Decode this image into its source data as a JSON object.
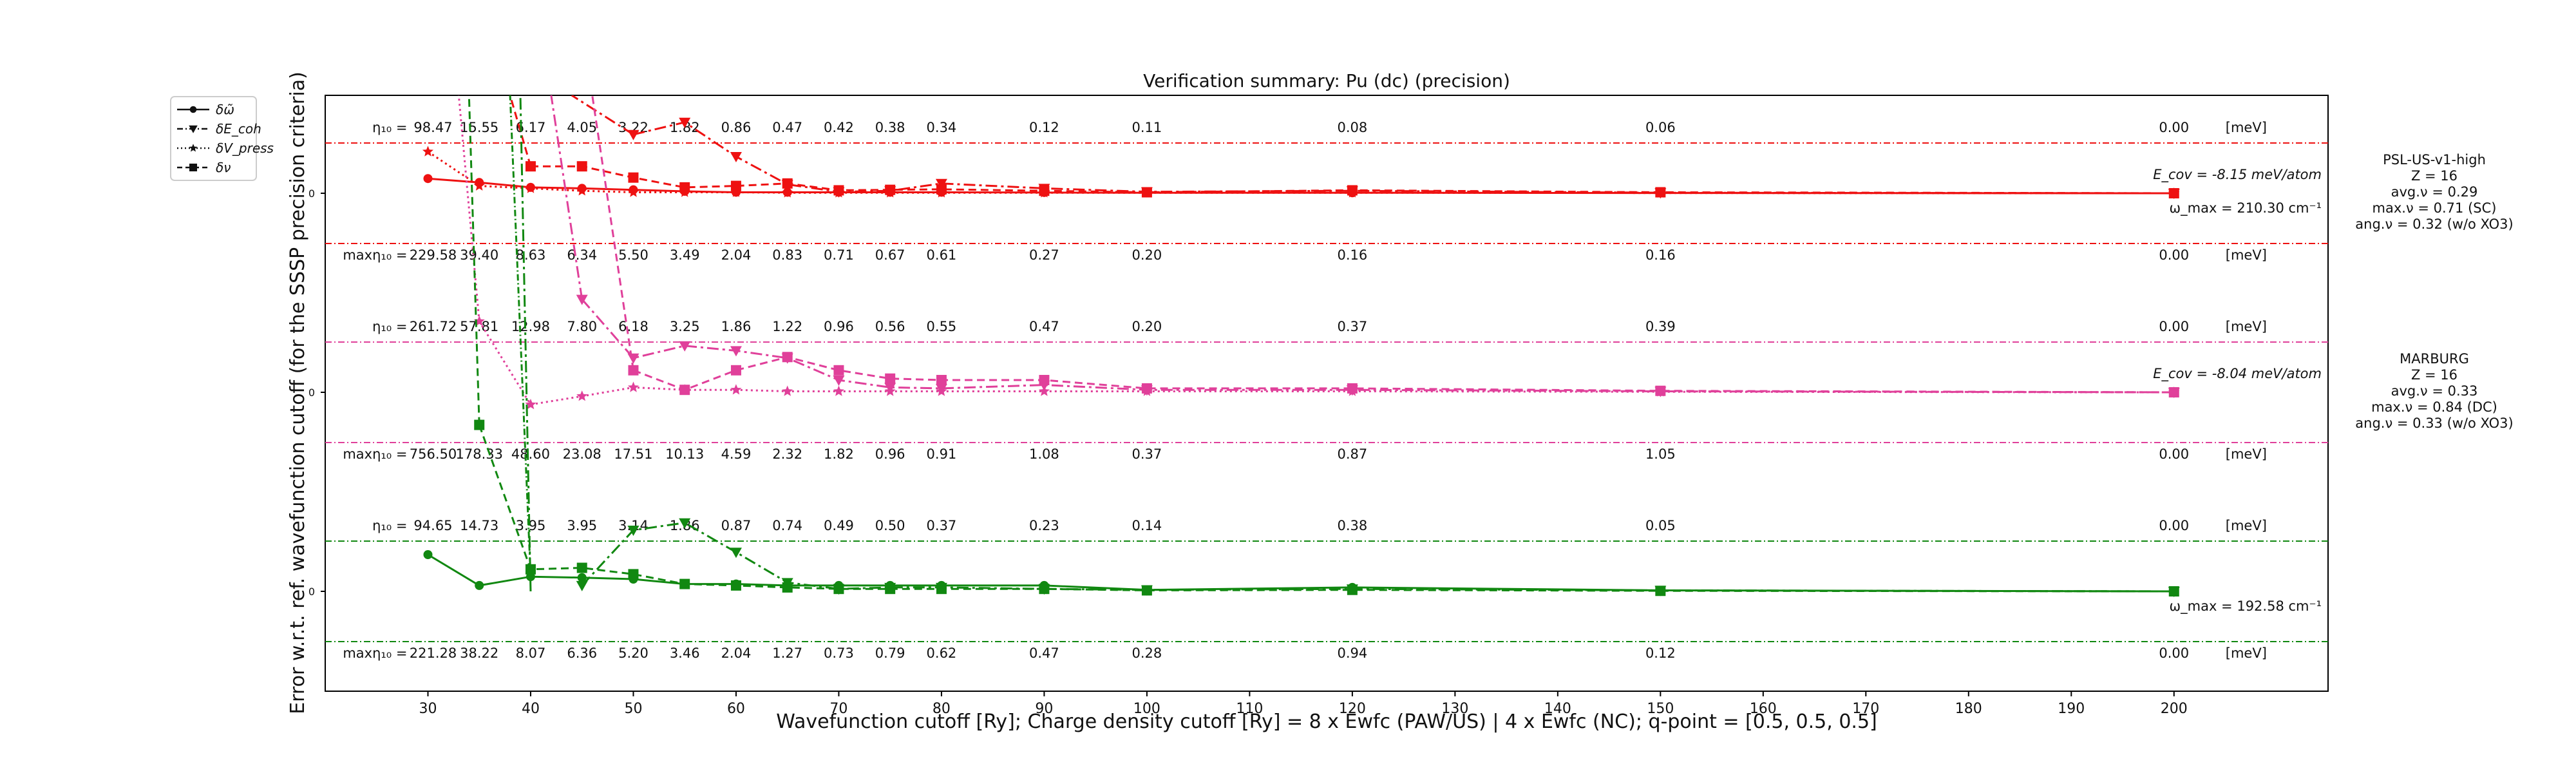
{
  "chart_data": {
    "type": "line",
    "title": "Verification summary: Pu (dc) (precision)",
    "xlabel": "Wavefunction cutoff [Ry]; Charge density cutoff [Ry] = 8 x Ewfc (PAW/US) | 4 x Ewfc (NC); q-point = [0.5, 0.5, 0.5]",
    "ylabel": "Error w.r.t. ref. wavefunction cutoff (for the SSSP precision criteria)",
    "xlim": [
      20,
      215
    ],
    "xticks": [
      30,
      40,
      50,
      60,
      70,
      80,
      90,
      100,
      110,
      120,
      130,
      140,
      150,
      160,
      170,
      180,
      190,
      200
    ],
    "x": [
      30,
      35,
      40,
      45,
      50,
      55,
      60,
      65,
      70,
      75,
      80,
      90,
      100,
      120,
      150,
      200
    ],
    "grid": false,
    "legend_position": "outside-top-left",
    "legend": [
      {
        "label": "δω̃",
        "marker": "circle",
        "linestyle": "solid"
      },
      {
        "label": "δE_coh",
        "marker": "triangle-down",
        "linestyle": "dashdot"
      },
      {
        "label": "δV_press",
        "marker": "star",
        "linestyle": "dotted"
      },
      {
        "label": "δν",
        "marker": "square",
        "linestyle": "dashed"
      }
    ],
    "eta_label": "η₁₀ =",
    "maxeta_label": "maxη₁₀ =",
    "unit_label": "[meV]",
    "zero_tick": "0",
    "panels": [
      {
        "color": "#ee1111",
        "info": [
          "PSL-US-v1-high",
          "Z = 16",
          "avg.ν = 0.29",
          "max.ν = 0.71 (SC)",
          "ang.ν = 0.32 (w/o XO3)"
        ],
        "ecov": "E_cov = -8.15 meV/atom",
        "omega_max": "ω_max = 210.30 cm⁻¹",
        "eta": [
          "98.47",
          "15.55",
          "6.17",
          "4.05",
          "3.22",
          "1.82",
          "0.86",
          "0.47",
          "0.42",
          "0.38",
          "0.34",
          "0.12",
          "0.11",
          "0.08",
          "0.06",
          "0.00"
        ],
        "maxeta": [
          "229.58",
          "39.40",
          "8.63",
          "6.34",
          "5.50",
          "3.49",
          "2.04",
          "0.83",
          "0.71",
          "0.67",
          "0.61",
          "0.27",
          "0.20",
          "0.16",
          "0.16",
          "0.00"
        ],
        "series": {
          "phonon": [
            0.3,
            0.22,
            0.12,
            0.1,
            0.07,
            0.04,
            0.02,
            0.02,
            0.02,
            0.02,
            0.02,
            0.015,
            0.01,
            0.01,
            0.005,
            0
          ],
          "ecoh": [
            null,
            null,
            null,
            null,
            1.2,
            1.45,
            0.75,
            0.18,
            0.03,
            0.05,
            0.2,
            0.1,
            0.03,
            0.05,
            0.01,
            0
          ],
          "press": [
            0.85,
            0.15,
            0.1,
            0.05,
            0.02,
            0.02,
            0.02,
            0.01,
            0.01,
            0.01,
            0.01,
            0.01,
            0.01,
            0.01,
            0.005,
            0
          ],
          "nu": [
            null,
            null,
            0.55,
            0.55,
            0.32,
            0.12,
            0.15,
            0.2,
            0.06,
            0.07,
            0.08,
            0.05,
            0.02,
            0.06,
            0.02,
            0
          ]
        }
      },
      {
        "color": "#e0409a",
        "info": [
          "MARBURG",
          "Z = 16",
          "avg.ν = 0.33",
          "max.ν = 0.84 (DC)",
          "ang.ν = 0.33 (w/o XO3)"
        ],
        "ecov": "E_cov = -8.04 meV/atom",
        "omega_max": "",
        "eta": [
          "261.72",
          "57.81",
          "12.98",
          "7.80",
          "6.18",
          "3.25",
          "1.86",
          "1.22",
          "0.96",
          "0.56",
          "0.55",
          "0.47",
          "0.20",
          "0.37",
          "0.39",
          "0.00"
        ],
        "maxeta": [
          "756.50",
          "178.33",
          "48.60",
          "23.08",
          "17.51",
          "10.13",
          "4.59",
          "2.32",
          "1.82",
          "0.96",
          "0.91",
          "1.08",
          "0.37",
          "0.87",
          "1.05",
          "0.00"
        ],
        "series": {
          "phonon": [
            null,
            null,
            null,
            null,
            null,
            null,
            null,
            null,
            null,
            null,
            null,
            null,
            null,
            null,
            null,
            null
          ],
          "ecoh": [
            null,
            null,
            null,
            1.9,
            0.7,
            0.95,
            0.85,
            0.7,
            0.25,
            0.1,
            0.08,
            0.15,
            0.05,
            0.05,
            0.02,
            0
          ],
          "press": [
            null,
            1.45,
            -0.25,
            -0.08,
            0.1,
            0.05,
            0.05,
            0.02,
            0.02,
            0.02,
            0.02,
            0.02,
            0.02,
            0.02,
            0.01,
            0
          ],
          "nu": [
            null,
            null,
            null,
            null,
            0.45,
            0.05,
            0.45,
            0.72,
            0.45,
            0.28,
            0.25,
            0.25,
            0.08,
            0.08,
            0.03,
            0
          ]
        }
      },
      {
        "color": "#118811",
        "info": [],
        "ecov": "",
        "omega_max": "ω_max = 192.58 cm⁻¹",
        "eta": [
          "94.65",
          "14.73",
          "3.95",
          "3.95",
          "3.14",
          "1.86",
          "0.87",
          "0.74",
          "0.49",
          "0.50",
          "0.37",
          "0.23",
          "0.14",
          "0.38",
          "0.05",
          "0.00"
        ],
        "maxeta": [
          "221.28",
          "38.22",
          "8.07",
          "6.36",
          "5.20",
          "3.46",
          "2.04",
          "1.27",
          "0.73",
          "0.79",
          "0.62",
          "0.47",
          "0.28",
          "0.94",
          "0.12",
          "0.00"
        ],
        "series": {
          "phonon": [
            0.75,
            0.12,
            0.3,
            0.28,
            0.25,
            0.15,
            0.15,
            0.12,
            0.12,
            0.12,
            0.12,
            0.12,
            0.03,
            0.08,
            0.02,
            0
          ],
          "ecoh": [
            null,
            null,
            null,
            0.12,
            1.25,
            1.4,
            0.8,
            0.18,
            0.05,
            0.08,
            0.08,
            0.05,
            0.03,
            0.05,
            0.02,
            0
          ],
          "press": [
            null,
            null,
            null,
            null,
            null,
            null,
            null,
            null,
            null,
            null,
            null,
            null,
            null,
            null,
            null,
            null
          ],
          "nu": [
            null,
            3.4,
            0.45,
            0.48,
            0.35,
            0.15,
            0.12,
            0.08,
            0.05,
            0.05,
            0.05,
            0.05,
            0.02,
            0.03,
            0.01,
            0
          ]
        }
      }
    ]
  }
}
